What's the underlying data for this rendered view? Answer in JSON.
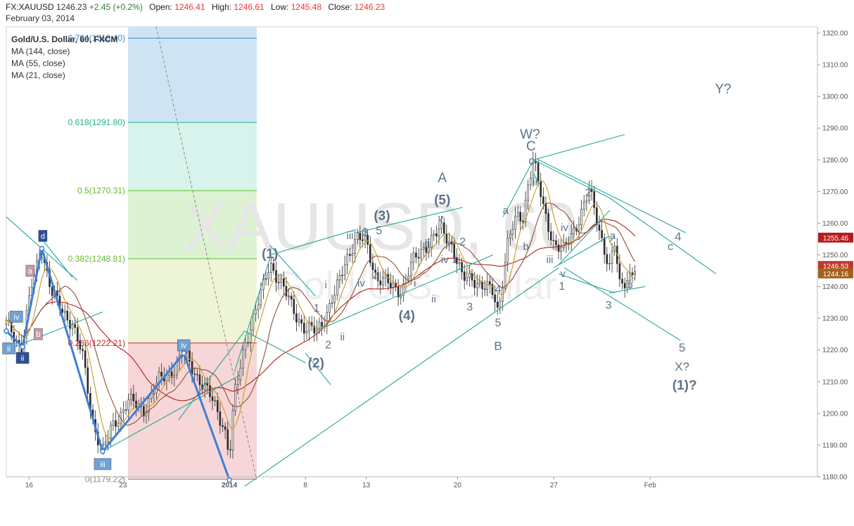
{
  "header": {
    "symbol": "FX:XAUUSD",
    "last": "1246.23",
    "change": "+2.45 (+0.2%)",
    "open_label": "Open:",
    "open": "1246.41",
    "high_label": "High:",
    "high": "1246.61",
    "low_label": "Low:",
    "low": "1245.48",
    "close_label": "Close:",
    "close": "1246.23",
    "date": "February 03, 2014"
  },
  "legend": {
    "title": "Gold/U.S. Dollar, 60, FXCM",
    "indicators": [
      "MA (144, close)",
      "MA (55, close)",
      "MA (21, close)"
    ]
  },
  "watermark": {
    "symbol": "XAUUSD, 60",
    "name": "Gold/U.S. Dollar"
  },
  "colors": {
    "price_down": "#2a2a2a",
    "ma_slow": "#b71c1c",
    "ma_mid": "#8d4f37",
    "ma_fast": "#c79b2b",
    "channel": "#26a69a",
    "wave_text": "#5d7387",
    "pattern_line": "#3d7fd6",
    "fib_blue": "#cfe4f3",
    "fib_teal": "#d7f3ec",
    "fib_green": "#dcf2d2",
    "fib_yellow": "#eef5d7",
    "fib_red": "#f6d6d6",
    "fib_red_line": "#c62828",
    "fib_green_line": "#66bb2a",
    "fib_teal_line": "#22b08c",
    "fib_blue_line": "#3d7fd6",
    "badge_last": "#c0392b",
    "badge_ma": "#a2611d"
  },
  "chart_data": {
    "type": "candlestick",
    "y_axis": {
      "range": [
        1180,
        1322
      ],
      "ticks": [
        "1320.00",
        "1310.00",
        "1300.00",
        "1290.00",
        "1280.00",
        "1270.00",
        "1260.00",
        "1250.00",
        "1240.00",
        "1230.00",
        "1220.00",
        "1210.00",
        "1200.00",
        "1190.00",
        "1180.00"
      ]
    },
    "x_axis": {
      "ticks": [
        "16",
        "23",
        "2014",
        "8",
        "13",
        "20",
        "27",
        "Feb"
      ]
    },
    "price_labels": [
      {
        "value": 1255.46,
        "text": "1255.46",
        "color": "#b71c1c"
      },
      {
        "value": 1246.53,
        "text": "1246.53",
        "color": "#c0392b"
      },
      {
        "value": 1244.16,
        "text": "1244.16",
        "color": "#a2611d"
      }
    ],
    "fibonacci": [
      {
        "level": "0.764(1318.40)",
        "price": 1318.4
      },
      {
        "level": "0.618(1291.80)",
        "price": 1291.8
      },
      {
        "level": "0.5(1270.31)",
        "price": 1270.31
      },
      {
        "level": "0.382(1248.81)",
        "price": 1248.81
      },
      {
        "level": "0.236(1222.21)",
        "price": 1222.21
      },
      {
        "level": "0(1179.22)",
        "price": 1179.22
      }
    ],
    "wave_path": [
      {
        "t": 0.0,
        "p": 1226
      },
      {
        "t": 3.2,
        "p": 1221
      },
      {
        "t": 7.0,
        "p": 1252
      },
      {
        "t": 19.0,
        "p": 1188
      },
      {
        "t": 35.0,
        "p": 1219
      },
      {
        "t": 44.0,
        "p": 1179
      }
    ],
    "wave_labels": [
      {
        "text": "W?",
        "t": 103.3,
        "p": 1286.7,
        "size": 19
      },
      {
        "text": "Y?",
        "t": 141.4,
        "p": 1301.0,
        "size": 19
      },
      {
        "text": "C",
        "t": 103.5,
        "p": 1283.0,
        "size": 19
      },
      {
        "text": "c",
        "t": 103.6,
        "p": 1278.5,
        "size": 17
      },
      {
        "text": "A",
        "t": 86.0,
        "p": 1273.0,
        "size": 19
      },
      {
        "text": "(5)",
        "t": 86.0,
        "p": 1266.0,
        "size": 19,
        "bold": true
      },
      {
        "text": "v",
        "t": 85.7,
        "p": 1260.5,
        "size": 15
      },
      {
        "text": "(3)",
        "t": 74.1,
        "p": 1261.0,
        "size": 19,
        "bold": true
      },
      {
        "text": "iii",
        "t": 67.8,
        "p": 1255.0,
        "size": 15
      },
      {
        "text": "3",
        "t": 70.8,
        "p": 1256.0,
        "size": 16
      },
      {
        "text": "5",
        "t": 73.5,
        "p": 1256.5,
        "size": 16
      },
      {
        "text": "(1)",
        "t": 52.0,
        "p": 1249.0,
        "size": 19,
        "bold": true
      },
      {
        "text": "4",
        "t": 73.0,
        "p": 1242.0,
        "size": 16
      },
      {
        "text": "iv",
        "t": 70.0,
        "p": 1240.0,
        "size": 15
      },
      {
        "text": "i",
        "t": 63.0,
        "p": 1239.5,
        "size": 15
      },
      {
        "text": "1",
        "t": 61.2,
        "p": 1232.0,
        "size": 16
      },
      {
        "text": "(4)",
        "t": 79.0,
        "p": 1229.5,
        "size": 19,
        "bold": true
      },
      {
        "text": "2",
        "t": 63.5,
        "p": 1220.5,
        "size": 16
      },
      {
        "text": "ii",
        "t": 66.3,
        "p": 1223.0,
        "size": 15
      },
      {
        "text": "(2)",
        "t": 61.1,
        "p": 1214.5,
        "size": 19,
        "bold": true
      },
      {
        "text": "iii",
        "t": 83.2,
        "p": 1252.5,
        "size": 15
      },
      {
        "text": "iv",
        "t": 86.5,
        "p": 1247.5,
        "size": 15
      },
      {
        "text": "2",
        "t": 90.0,
        "p": 1253.0,
        "size": 16
      },
      {
        "text": "1",
        "t": 88.5,
        "p": 1247.5,
        "size": 16
      },
      {
        "text": "i",
        "t": 80.6,
        "p": 1240.0,
        "size": 15
      },
      {
        "text": "ii",
        "t": 84.3,
        "p": 1235.0,
        "size": 15
      },
      {
        "text": "3",
        "t": 91.4,
        "p": 1232.5,
        "size": 16
      },
      {
        "text": "4",
        "t": 97.0,
        "p": 1238.0,
        "size": 16
      },
      {
        "text": "5",
        "t": 97.0,
        "p": 1227.5,
        "size": 16
      },
      {
        "text": "B",
        "t": 97.0,
        "p": 1220.0,
        "size": 17
      },
      {
        "text": "a",
        "t": 98.5,
        "p": 1263.0,
        "size": 15
      },
      {
        "text": "b",
        "t": 102.5,
        "p": 1251.5,
        "size": 15
      },
      {
        "text": "ii",
        "t": 104.3,
        "p": 1272.0,
        "size": 15
      },
      {
        "text": "2",
        "t": 114.8,
        "p": 1268.5,
        "size": 16
      },
      {
        "text": "iv",
        "t": 110.1,
        "p": 1257.5,
        "size": 15
      },
      {
        "text": "iii",
        "t": 107.2,
        "p": 1247.5,
        "size": 15
      },
      {
        "text": "v",
        "t": 109.8,
        "p": 1243.0,
        "size": 15
      },
      {
        "text": "1",
        "t": 109.6,
        "p": 1239.0,
        "size": 16
      },
      {
        "text": "a",
        "t": 119.6,
        "p": 1255.0,
        "size": 15
      },
      {
        "text": "b",
        "t": 123.0,
        "p": 1239.5,
        "size": 15
      },
      {
        "text": "3",
        "t": 118.8,
        "p": 1233.0,
        "size": 16
      },
      {
        "text": "c",
        "t": 131.0,
        "p": 1251.5,
        "size": 16
      },
      {
        "text": "4",
        "t": 132.5,
        "p": 1254.5,
        "size": 17
      },
      {
        "text": "5",
        "t": 133.3,
        "p": 1219.5,
        "size": 17
      },
      {
        "text": "X?",
        "t": 133.3,
        "p": 1213.5,
        "size": 17
      },
      {
        "text": "(1)?",
        "t": 133.8,
        "p": 1207.5,
        "size": 19,
        "bold": true
      }
    ],
    "box_labels": [
      {
        "text": "ii",
        "t": 0.5,
        "p": 1220.5,
        "color": "#6fa3d6"
      },
      {
        "text": "iv",
        "t": 2.0,
        "p": 1230.5,
        "color": "#6fa3d6"
      },
      {
        "text": "ii",
        "t": 3.2,
        "p": 1217.5,
        "color": "#2f4e9a"
      },
      {
        "text": "a",
        "t": 4.7,
        "p": 1245.0,
        "color": "#c99aa8"
      },
      {
        "text": "b",
        "t": 6.3,
        "p": 1225.0,
        "color": "#c99aa8"
      },
      {
        "text": "d",
        "t": 7.2,
        "p": 1256.0,
        "color": "#2f4e9a"
      },
      {
        "text": "iii",
        "t": 19.0,
        "p": 1184.0,
        "color": "#6fa3d6"
      },
      {
        "text": "iv",
        "t": 35.0,
        "p": 1221.5,
        "color": "#6fa3d6"
      }
    ]
  }
}
